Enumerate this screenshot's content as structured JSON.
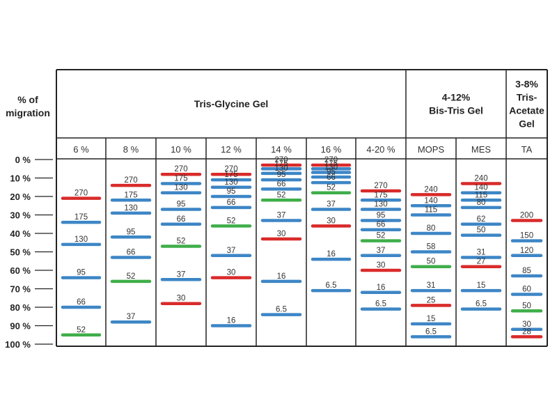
{
  "chart_data": {
    "type": "table",
    "y_title_line1": "% of",
    "y_title_line2": "migration",
    "y_ticks": [
      "0 %",
      "10 %",
      "20 %",
      "30 %",
      "40 %",
      "50 %",
      "60 %",
      "70 %",
      "80 %",
      "90 %",
      "100 %"
    ],
    "ylim": [
      0,
      100
    ],
    "groups": [
      {
        "id": "tris-glycine",
        "lines": [
          "Tris-Glycine Gel"
        ]
      },
      {
        "id": "bis-tris",
        "lines": [
          "4-12%",
          "Bis-Tris Gel"
        ]
      },
      {
        "id": "tris-acetate",
        "lines": [
          "3-8%",
          "Tris-",
          "Acetate",
          "Gel"
        ]
      }
    ],
    "columns": [
      {
        "label": "6 %",
        "group": "tris-glycine",
        "bands": [
          {
            "value": 270,
            "migration": 21,
            "color": "red"
          },
          {
            "value": 175,
            "migration": 34,
            "color": "blue"
          },
          {
            "value": 130,
            "migration": 46,
            "color": "blue"
          },
          {
            "value": 95,
            "migration": 64,
            "color": "blue"
          },
          {
            "value": 66,
            "migration": 80,
            "color": "blue"
          },
          {
            "value": 52,
            "migration": 95,
            "color": "green"
          }
        ]
      },
      {
        "label": "8 %",
        "group": "tris-glycine",
        "bands": [
          {
            "value": 270,
            "migration": 14,
            "color": "red"
          },
          {
            "value": 175,
            "migration": 22,
            "color": "blue"
          },
          {
            "value": 130,
            "migration": 29,
            "color": "blue"
          },
          {
            "value": 95,
            "migration": 42,
            "color": "blue"
          },
          {
            "value": 66,
            "migration": 53,
            "color": "blue"
          },
          {
            "value": 52,
            "migration": 66,
            "color": "green"
          },
          {
            "value": 37,
            "migration": 88,
            "color": "blue"
          }
        ]
      },
      {
        "label": "10 %",
        "group": "tris-glycine",
        "bands": [
          {
            "value": 270,
            "migration": 8,
            "color": "red"
          },
          {
            "value": 175,
            "migration": 13,
            "color": "blue"
          },
          {
            "value": 130,
            "migration": 18,
            "color": "blue"
          },
          {
            "value": 95,
            "migration": 27,
            "color": "blue"
          },
          {
            "value": 66,
            "migration": 35,
            "color": "blue"
          },
          {
            "value": 52,
            "migration": 47,
            "color": "green"
          },
          {
            "value": 37,
            "migration": 65,
            "color": "blue"
          },
          {
            "value": 30,
            "migration": 78,
            "color": "red"
          }
        ]
      },
      {
        "label": "12 %",
        "group": "tris-glycine",
        "bands": [
          {
            "value": 270,
            "migration": 8,
            "color": "red"
          },
          {
            "value": 175,
            "migration": 11,
            "color": "blue"
          },
          {
            "value": 130,
            "migration": 15,
            "color": "blue"
          },
          {
            "value": 95,
            "migration": 20,
            "color": "blue"
          },
          {
            "value": 66,
            "migration": 26,
            "color": "blue"
          },
          {
            "value": 52,
            "migration": 36,
            "color": "green"
          },
          {
            "value": 37,
            "migration": 52,
            "color": "blue"
          },
          {
            "value": 30,
            "migration": 64,
            "color": "red"
          },
          {
            "value": 16,
            "migration": 90,
            "color": "blue"
          }
        ]
      },
      {
        "label": "14 %",
        "group": "tris-glycine",
        "bands": [
          {
            "value": 270,
            "migration": 3,
            "color": "red"
          },
          {
            "value": 175,
            "migration": 5,
            "color": "blue"
          },
          {
            "value": 130,
            "migration": 7.5,
            "color": "blue"
          },
          {
            "value": 95,
            "migration": 11,
            "color": "blue"
          },
          {
            "value": 66,
            "migration": 16,
            "color": "blue"
          },
          {
            "value": 52,
            "migration": 22,
            "color": "green"
          },
          {
            "value": 37,
            "migration": 33,
            "color": "blue"
          },
          {
            "value": 30,
            "migration": 43,
            "color": "red"
          },
          {
            "value": 16,
            "migration": 66,
            "color": "blue"
          },
          {
            "value": 6.5,
            "migration": 84,
            "color": "blue"
          }
        ]
      },
      {
        "label": "16 %",
        "group": "tris-glycine",
        "bands": [
          {
            "value": 270,
            "migration": 3,
            "color": "red"
          },
          {
            "value": 175,
            "migration": 5,
            "color": "blue"
          },
          {
            "value": 130,
            "migration": 7,
            "color": "blue"
          },
          {
            "value": 95,
            "migration": 9.5,
            "color": "blue"
          },
          {
            "value": 66,
            "migration": 12.5,
            "color": "blue"
          },
          {
            "value": 52,
            "migration": 18,
            "color": "green"
          },
          {
            "value": 37,
            "migration": 27,
            "color": "blue"
          },
          {
            "value": 30,
            "migration": 36,
            "color": "red"
          },
          {
            "value": 16,
            "migration": 54,
            "color": "blue"
          },
          {
            "value": 6.5,
            "migration": 71,
            "color": "blue"
          }
        ]
      },
      {
        "label": "4-20 %",
        "group": "tris-glycine",
        "bands": [
          {
            "value": 270,
            "migration": 17,
            "color": "red"
          },
          {
            "value": 175,
            "migration": 22,
            "color": "blue"
          },
          {
            "value": 130,
            "migration": 27,
            "color": "blue"
          },
          {
            "value": 95,
            "migration": 33,
            "color": "blue"
          },
          {
            "value": 66,
            "migration": 38,
            "color": "blue"
          },
          {
            "value": 52,
            "migration": 44,
            "color": "green"
          },
          {
            "value": 37,
            "migration": 52,
            "color": "blue"
          },
          {
            "value": 30,
            "migration": 60,
            "color": "red"
          },
          {
            "value": 16,
            "migration": 72,
            "color": "blue"
          },
          {
            "value": 6.5,
            "migration": 81,
            "color": "blue"
          }
        ]
      },
      {
        "label": "MOPS",
        "group": "bis-tris",
        "bands": [
          {
            "value": 240,
            "migration": 19,
            "color": "red"
          },
          {
            "value": 140,
            "migration": 25,
            "color": "blue"
          },
          {
            "value": 115,
            "migration": 30,
            "color": "blue"
          },
          {
            "value": 80,
            "migration": 40,
            "color": "blue"
          },
          {
            "value": 58,
            "migration": 50,
            "color": "blue"
          },
          {
            "value": 50,
            "migration": 58,
            "color": "green"
          },
          {
            "value": 31,
            "migration": 71,
            "color": "blue"
          },
          {
            "value": 25,
            "migration": 79,
            "color": "red"
          },
          {
            "value": 15,
            "migration": 89,
            "color": "blue"
          },
          {
            "value": 6.5,
            "migration": 96,
            "color": "blue"
          }
        ]
      },
      {
        "label": "MES",
        "group": "bis-tris",
        "bands": [
          {
            "value": 240,
            "migration": 13,
            "color": "red"
          },
          {
            "value": 140,
            "migration": 18,
            "color": "blue"
          },
          {
            "value": 115,
            "migration": 22,
            "color": "blue"
          },
          {
            "value": 80,
            "migration": 26,
            "color": "blue"
          },
          {
            "value": 62,
            "migration": 35,
            "color": "blue"
          },
          {
            "value": 50,
            "migration": 41,
            "color": "blue"
          },
          {
            "value": 31,
            "migration": 53,
            "color": "blue"
          },
          {
            "value": 27,
            "migration": 58,
            "color": "red"
          },
          {
            "value": 15,
            "migration": 71,
            "color": "blue"
          },
          {
            "value": 6.5,
            "migration": 81,
            "color": "blue"
          }
        ]
      },
      {
        "label": "TA",
        "group": "tris-acetate",
        "bands": [
          {
            "value": 200,
            "migration": 33,
            "color": "red"
          },
          {
            "value": 150,
            "migration": 44,
            "color": "blue"
          },
          {
            "value": 120,
            "migration": 52,
            "color": "blue"
          },
          {
            "value": 85,
            "migration": 63,
            "color": "blue"
          },
          {
            "value": 60,
            "migration": 73,
            "color": "blue"
          },
          {
            "value": 50,
            "migration": 82,
            "color": "green"
          },
          {
            "value": 30,
            "migration": 92,
            "color": "blue"
          },
          {
            "value": 28,
            "migration": 96,
            "color": "red"
          }
        ]
      }
    ]
  },
  "colors": {
    "red": "#d92a2a",
    "blue": "#3d86c6",
    "green": "#3fae49",
    "border": "#222222"
  }
}
